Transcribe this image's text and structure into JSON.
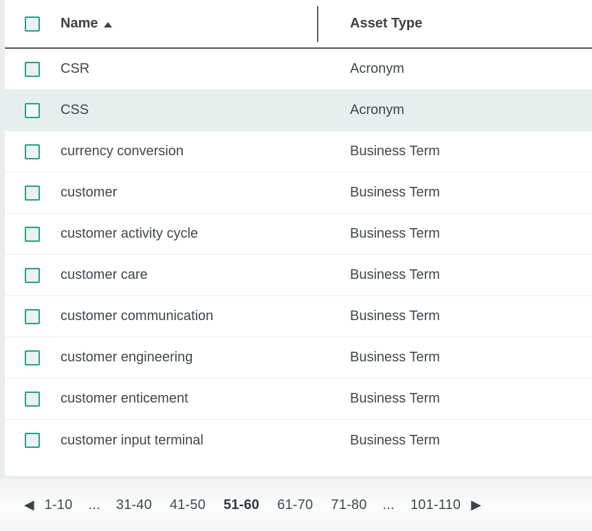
{
  "table": {
    "header": {
      "name_label": "Name",
      "asset_type_label": "Asset Type",
      "sort_column": "Name",
      "sort_direction": "ascending"
    },
    "rows": [
      {
        "name": "CSR",
        "asset_type": "Acronym",
        "highlighted": false
      },
      {
        "name": "CSS",
        "asset_type": "Acronym",
        "highlighted": true
      },
      {
        "name": "currency conversion",
        "asset_type": "Business Term",
        "highlighted": false
      },
      {
        "name": "customer",
        "asset_type": "Business Term",
        "highlighted": false
      },
      {
        "name": "customer activity cycle",
        "asset_type": "Business Term",
        "highlighted": false
      },
      {
        "name": "customer care",
        "asset_type": "Business Term",
        "highlighted": false
      },
      {
        "name": "customer communication",
        "asset_type": "Business Term",
        "highlighted": false
      },
      {
        "name": "customer engineering",
        "asset_type": "Business Term",
        "highlighted": false
      },
      {
        "name": "customer enticement",
        "asset_type": "Business Term",
        "highlighted": false
      },
      {
        "name": "customer input terminal",
        "asset_type": "Business Term",
        "highlighted": false
      }
    ]
  },
  "pagination": {
    "prev_icon": "◀",
    "next_icon": "▶",
    "current_range": "51-60",
    "pages": [
      {
        "label": "1-10",
        "current": false,
        "ellipsis": false
      },
      {
        "label": "...",
        "current": false,
        "ellipsis": true
      },
      {
        "label": "31-40",
        "current": false,
        "ellipsis": false
      },
      {
        "label": "41-50",
        "current": false,
        "ellipsis": false
      },
      {
        "label": "51-60",
        "current": true,
        "ellipsis": false
      },
      {
        "label": "61-70",
        "current": false,
        "ellipsis": false
      },
      {
        "label": "71-80",
        "current": false,
        "ellipsis": false
      },
      {
        "label": "...",
        "current": false,
        "ellipsis": true
      },
      {
        "label": "101-110",
        "current": false,
        "ellipsis": false
      }
    ]
  },
  "colors": {
    "accent_teal": "#2a9c8c",
    "checkbox_fill": "#eaf3f0",
    "row_highlight": "#e5efed",
    "text": "#41474c",
    "header_text": "#3c4147",
    "header_border": "#4e545a",
    "row_separator": "#eaeef1",
    "gutter": "#e9edf0"
  }
}
